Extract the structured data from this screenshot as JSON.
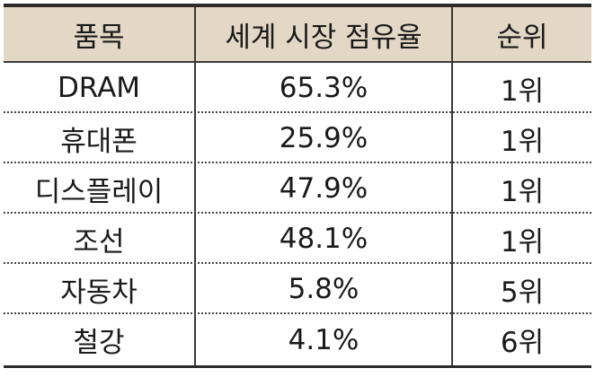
{
  "table": {
    "headers": [
      "품목",
      "세계 시장 점유율",
      "순위"
    ],
    "rows": [
      [
        "DRAM",
        "65.3%",
        "1위"
      ],
      [
        "휴대폰",
        "25.9%",
        "1위"
      ],
      [
        "디스플레이",
        "47.9%",
        "1위"
      ],
      [
        "조선",
        "48.1%",
        "1위"
      ],
      [
        "자동차",
        "5.8%",
        "5위"
      ],
      [
        "철강",
        "4.1%",
        "6위"
      ]
    ]
  },
  "colors": {
    "header_background": "#e3d8c6",
    "rule": "#2a2a2a"
  }
}
